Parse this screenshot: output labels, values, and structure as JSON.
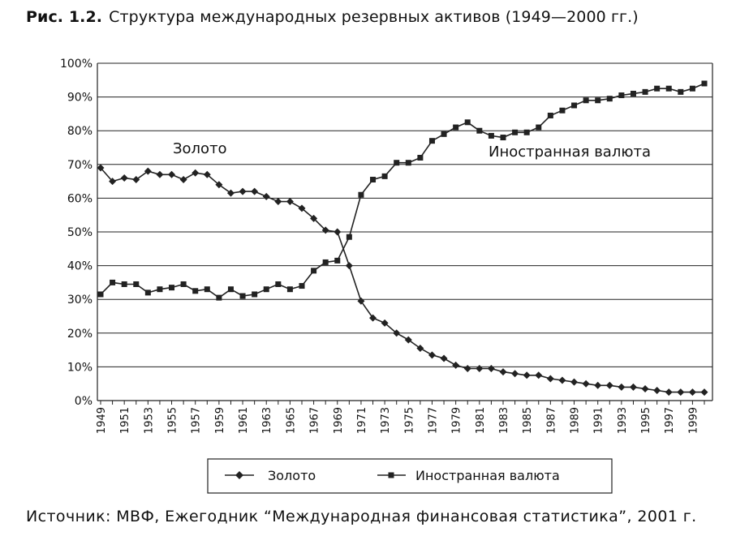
{
  "caption": {
    "number": "Рис. 1.2.",
    "text": "Структура международных резервных активов (1949—2000 гг.)"
  },
  "source": "Источник: МВФ, Ежегодник “Международная финансовая статистика”, 2001 г.",
  "chart_data": {
    "type": "line",
    "title": "",
    "xlabel": "",
    "ylabel": "",
    "ylim": [
      0,
      100
    ],
    "y_ticks": [
      "0%",
      "10%",
      "20%",
      "30%",
      "40%",
      "50%",
      "60%",
      "70%",
      "80%",
      "90%",
      "100%"
    ],
    "x_tick_labels": [
      "1949",
      "1951",
      "1953",
      "1955",
      "1957",
      "1959",
      "1961",
      "1963",
      "1965",
      "1967",
      "1969",
      "1971",
      "1973",
      "1975",
      "1977",
      "1979",
      "1981",
      "1983",
      "1985",
      "1987",
      "1989",
      "1991",
      "1993",
      "1995",
      "1997",
      "1999"
    ],
    "grid": "horizontal",
    "legend_position": "bottom",
    "x": [
      1949,
      1950,
      1951,
      1952,
      1953,
      1954,
      1955,
      1956,
      1957,
      1958,
      1959,
      1960,
      1961,
      1962,
      1963,
      1964,
      1965,
      1966,
      1967,
      1968,
      1969,
      1970,
      1971,
      1972,
      1973,
      1974,
      1975,
      1976,
      1977,
      1978,
      1979,
      1980,
      1981,
      1982,
      1983,
      1984,
      1985,
      1986,
      1987,
      1988,
      1989,
      1990,
      1991,
      1992,
      1993,
      1994,
      1995,
      1996,
      1997,
      1998,
      1999,
      2000
    ],
    "series": [
      {
        "name": "Золото",
        "marker": "diamond",
        "values": [
          69,
          65,
          66,
          65.5,
          68,
          67,
          67,
          65.5,
          67.5,
          67,
          64,
          61.5,
          62,
          62,
          60.5,
          59,
          59,
          57,
          54,
          50.5,
          50,
          40,
          29.5,
          24.5,
          23,
          20,
          18,
          15.5,
          13.5,
          12.5,
          10.5,
          9.5,
          9.5,
          9.5,
          8.5,
          8,
          7.5,
          7.5,
          6.5,
          6,
          5.5,
          5,
          4.5,
          4.5,
          4,
          4,
          3.5,
          3,
          2.5,
          2.5,
          2.5,
          2.5
        ]
      },
      {
        "name": "Иностранная валюта",
        "marker": "square",
        "values": [
          31.5,
          35,
          34.5,
          34.5,
          32,
          33,
          33.5,
          34.5,
          32.5,
          33,
          30.5,
          33,
          31,
          31.5,
          33,
          34.5,
          33,
          34,
          38.5,
          41,
          41.5,
          48.5,
          61,
          65.5,
          66.5,
          70.5,
          70.5,
          72,
          77,
          79,
          81,
          82.5,
          80,
          78.5,
          78,
          79.5,
          79.5,
          81,
          84.5,
          86,
          87.5,
          89,
          89,
          89.5,
          90.5,
          91,
          91.5,
          92.5,
          92.5,
          91.5,
          92.5,
          94
        ]
      }
    ]
  },
  "series_labels": {
    "gold": "Золото",
    "foreign": "Иностранная валюта"
  },
  "legend": [
    {
      "label": "Золото",
      "marker": "diamond"
    },
    {
      "label": "Иностранная валюта",
      "marker": "square"
    }
  ]
}
